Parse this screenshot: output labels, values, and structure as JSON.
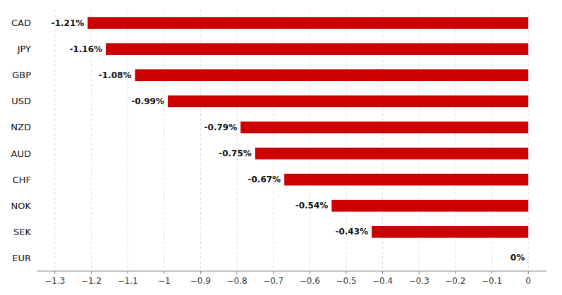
{
  "chart_data": {
    "type": "bar",
    "orientation": "horizontal",
    "categories": [
      "CAD",
      "JPY",
      "GBP",
      "USD",
      "NZD",
      "AUD",
      "CHF",
      "NOK",
      "SEK",
      "EUR"
    ],
    "values": [
      -1.21,
      -1.16,
      -1.08,
      -0.99,
      -0.79,
      -0.75,
      -0.67,
      -0.54,
      -0.43,
      0.0
    ],
    "value_labels": [
      "-1.21%",
      "-1.16%",
      "-1.08%",
      "-0.99%",
      "-0.79%",
      "-0.75%",
      "-0.67%",
      "-0.54%",
      "-0.43%",
      "0%"
    ],
    "data_labels": true,
    "color": "#cc0000",
    "xlim": [
      -1.35,
      0.05
    ],
    "xticks": [
      {
        "value": -1.3,
        "label": "−1.3"
      },
      {
        "value": -1.2,
        "label": "−1.2"
      },
      {
        "value": -1.1,
        "label": "−1.1"
      },
      {
        "value": -1.0,
        "label": "−1"
      },
      {
        "value": -0.9,
        "label": "−0.9"
      },
      {
        "value": -0.8,
        "label": "−0.8"
      },
      {
        "value": -0.7,
        "label": "−0.7"
      },
      {
        "value": -0.6,
        "label": "−0.6"
      },
      {
        "value": -0.5,
        "label": "−0.5"
      },
      {
        "value": -0.4,
        "label": "−0.4"
      },
      {
        "value": -0.3,
        "label": "−0.3"
      },
      {
        "value": -0.2,
        "label": "−0.2"
      },
      {
        "value": -0.1,
        "label": "−0.1"
      },
      0
    ],
    "grid": true
  }
}
